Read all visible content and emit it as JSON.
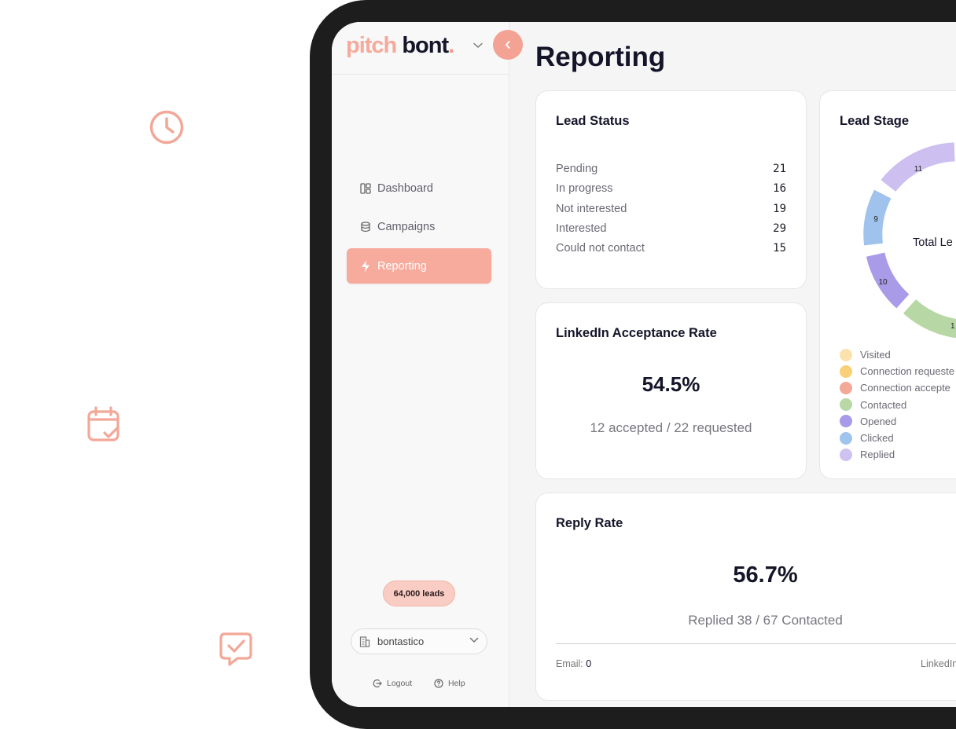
{
  "decor": {
    "icons": [
      "clock-icon",
      "calendar-check-icon",
      "message-check-icon"
    ],
    "accent": "#f4a293"
  },
  "brand": {
    "part1": "pitch",
    "part2": "bont",
    "dot": "."
  },
  "sidebar": {
    "items": [
      {
        "label": "Dashboard",
        "icon": "layout-icon",
        "active": false
      },
      {
        "label": "Campaigns",
        "icon": "database-icon",
        "active": false
      },
      {
        "label": "Reporting",
        "icon": "lightning-icon",
        "active": true
      }
    ],
    "leads_badge": "64,000 leads",
    "org": "bontastico",
    "logout": "Logout",
    "help": "Help"
  },
  "page": {
    "title": "Reporting"
  },
  "lead_status": {
    "title": "Lead Status",
    "rows": [
      {
        "label": "Pending",
        "value": "21"
      },
      {
        "label": "In progress",
        "value": "16"
      },
      {
        "label": "Not interested",
        "value": "19"
      },
      {
        "label": "Interested",
        "value": "29"
      },
      {
        "label": "Could not contact",
        "value": "15"
      }
    ]
  },
  "linkedin": {
    "title": "LinkedIn Acceptance Rate",
    "rate": "54.5%",
    "detail": "12 accepted / 22 requested"
  },
  "lead_stage": {
    "title": "Lead Stage",
    "center_label": "Total Le",
    "segments": [
      {
        "label": "11",
        "color": "#cdbff0"
      },
      {
        "label": "9",
        "color": "#9fc3ec"
      },
      {
        "label": "10",
        "color": "#a99be8"
      },
      {
        "label": "1",
        "color": "#b7d7a4"
      }
    ],
    "legend": [
      {
        "label": "Visited",
        "color": "#fbe2ad"
      },
      {
        "label": "Connection requeste",
        "color": "#f9cf77"
      },
      {
        "label": "Connection accepte",
        "color": "#f4a898"
      },
      {
        "label": "Contacted",
        "color": "#b9d8a6"
      },
      {
        "label": "Opened",
        "color": "#a89ae8"
      },
      {
        "label": "Clicked",
        "color": "#9fc5ee"
      },
      {
        "label": "Replied",
        "color": "#cfc2f1"
      }
    ]
  },
  "reply_rate": {
    "title": "Reply Rate",
    "rate": "56.7%",
    "detail": "Replied 38 / 67 Contacted",
    "email_label": "Email:",
    "email_value": "0",
    "linkedin_label": "LinkedIn"
  }
}
